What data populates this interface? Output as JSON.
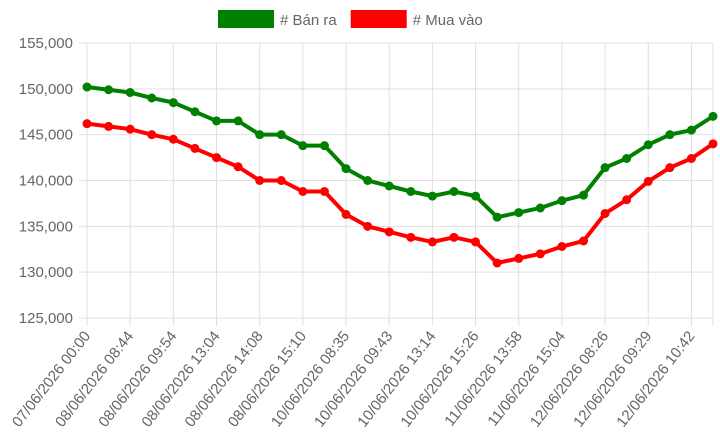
{
  "chart_data": {
    "type": "line",
    "categories": [
      "07/06/2026 00:00",
      null,
      "08/06/2026 08:44",
      null,
      "08/06/2026 09:54",
      null,
      "08/06/2026 13:04",
      null,
      "08/06/2026 14:08",
      null,
      "08/06/2026 15:10",
      null,
      "10/06/2026 08:35",
      null,
      "10/06/2026 09:43",
      null,
      "10/06/2026 13:14",
      null,
      "10/06/2026 15:26",
      null,
      "11/06/2026 13:58",
      null,
      "11/06/2026 15:04",
      null,
      "12/06/2026 08:26",
      null,
      "12/06/2026 09:29",
      null,
      "12/06/2026 10:42",
      null
    ],
    "series": [
      {
        "name": "# Bán ra",
        "color": "#008000",
        "values": [
          150200,
          149900,
          149600,
          149000,
          148500,
          147500,
          146500,
          146500,
          145000,
          145000,
          143800,
          143800,
          141300,
          140000,
          139400,
          138800,
          138300,
          138800,
          138300,
          136000,
          136500,
          137000,
          137800,
          138400,
          141400,
          142400,
          143900,
          145000,
          145500,
          147000
        ]
      },
      {
        "name": "# Mua vào",
        "color": "#ff0000",
        "values": [
          146200,
          145900,
          145600,
          145000,
          144500,
          143500,
          142500,
          141500,
          140000,
          140000,
          138800,
          138800,
          136300,
          135000,
          134400,
          133800,
          133300,
          133800,
          133300,
          131000,
          131500,
          132000,
          132800,
          133400,
          136400,
          137900,
          139900,
          141400,
          142400,
          144000
        ]
      }
    ],
    "ylim": [
      125000,
      155000
    ],
    "yticks": [
      {
        "value": 125000,
        "label": "125,000"
      },
      {
        "value": 130000,
        "label": "130,000"
      },
      {
        "value": 135000,
        "label": "135,000"
      },
      {
        "value": 140000,
        "label": "140,000"
      },
      {
        "value": 145000,
        "label": "145,000"
      },
      {
        "value": 150000,
        "label": "150,000"
      },
      {
        "value": 155000,
        "label": "155,000"
      }
    ],
    "grid": true
  }
}
